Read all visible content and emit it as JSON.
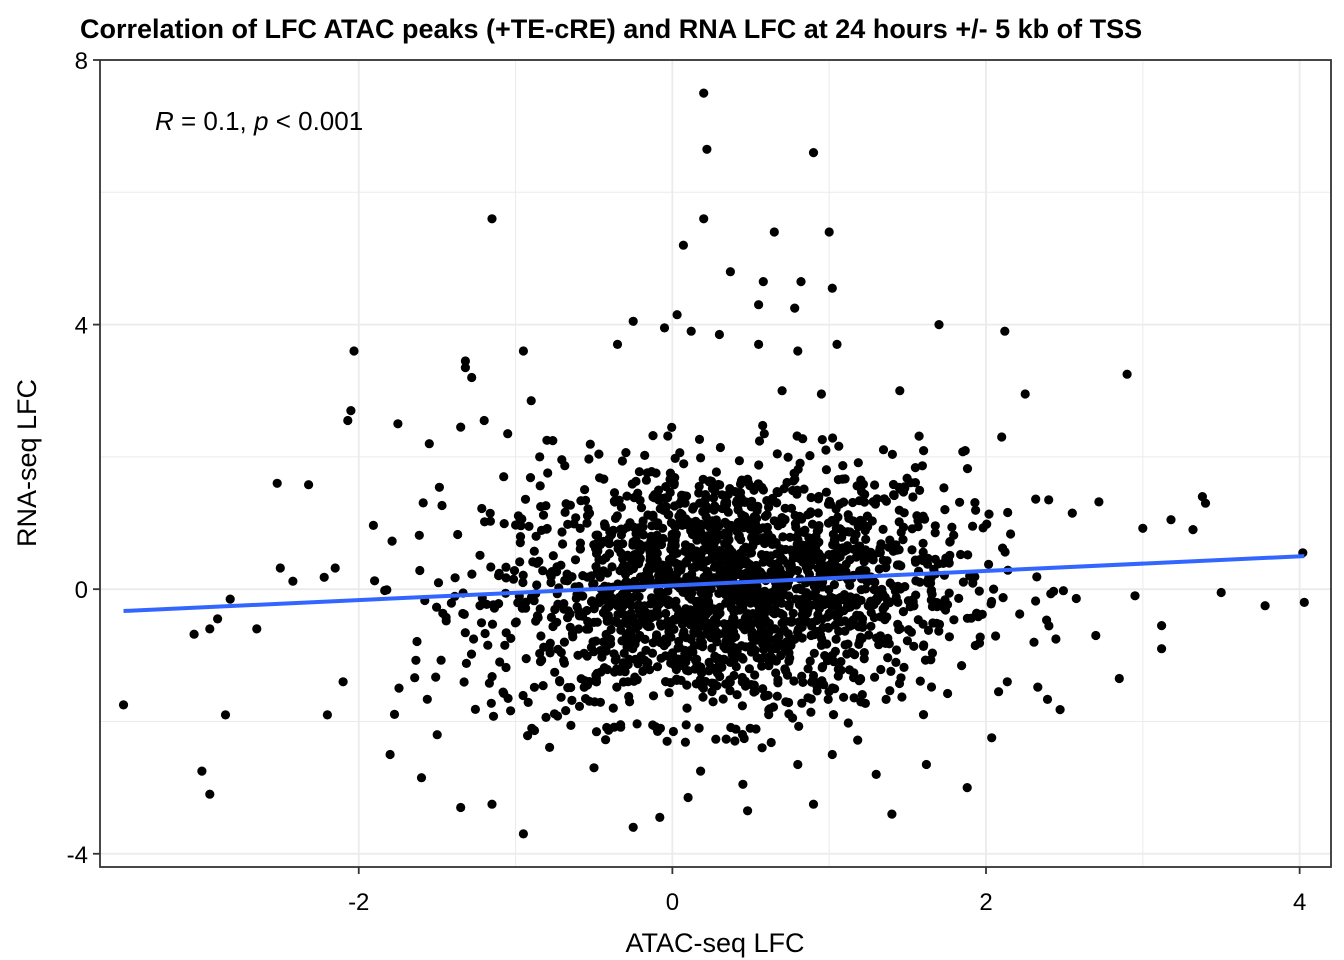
{
  "chart_data": {
    "type": "scatter",
    "title": "Correlation of LFC ATAC peaks (+TE-cRE) and RNA LFC at 24 hours +/- 5 kb of TSS",
    "xlabel": "ATAC-seq LFC",
    "ylabel": "RNA-seq LFC",
    "xlim": [
      -3.65,
      4.2
    ],
    "ylim": [
      -4.2,
      8.0
    ],
    "xticks": [
      -2,
      0,
      2,
      4
    ],
    "yticks": [
      -4,
      0,
      4,
      8
    ],
    "grid": true,
    "legend": "none",
    "annotation": {
      "R_symbol": "R",
      "R_text": " = 0.1, ",
      "p_symbol": "p",
      "p_text": " < 0.001"
    },
    "regression_line": {
      "color": "#3366FF",
      "x": [
        -3.5,
        4.03
      ],
      "y": [
        -0.33,
        0.5
      ]
    },
    "point_color": "#000000",
    "points": [
      [
        0.2,
        7.5
      ],
      [
        0.22,
        6.65
      ],
      [
        0.9,
        6.6
      ],
      [
        -1.15,
        5.6
      ],
      [
        0.2,
        5.6
      ],
      [
        1.0,
        5.4
      ],
      [
        0.65,
        5.4
      ],
      [
        0.07,
        5.2
      ],
      [
        0.37,
        4.8
      ],
      [
        1.02,
        4.55
      ],
      [
        0.58,
        4.65
      ],
      [
        0.82,
        4.65
      ],
      [
        0.55,
        4.3
      ],
      [
        0.78,
        4.25
      ],
      [
        0.03,
        4.15
      ],
      [
        -0.25,
        4.05
      ],
      [
        1.7,
        4.0
      ],
      [
        2.12,
        3.9
      ],
      [
        -0.05,
        3.95
      ],
      [
        0.12,
        3.9
      ],
      [
        0.3,
        3.85
      ],
      [
        -0.35,
        3.7
      ],
      [
        -0.95,
        3.6
      ],
      [
        -2.03,
        3.6
      ],
      [
        0.55,
        3.7
      ],
      [
        0.8,
        3.6
      ],
      [
        1.05,
        3.7
      ],
      [
        -1.32,
        3.35
      ],
      [
        -1.28,
        3.2
      ],
      [
        -1.32,
        3.45
      ],
      [
        2.9,
        3.25
      ],
      [
        0.7,
        3.0
      ],
      [
        1.45,
        3.0
      ],
      [
        -2.05,
        2.7
      ],
      [
        -2.07,
        2.55
      ],
      [
        -1.75,
        2.5
      ],
      [
        -0.9,
        2.85
      ],
      [
        0.95,
        2.95
      ],
      [
        2.25,
        2.95
      ],
      [
        -1.35,
        2.45
      ],
      [
        -1.2,
        2.55
      ],
      [
        -1.05,
        2.35
      ],
      [
        -1.55,
        2.2
      ],
      [
        -0.8,
        2.25
      ],
      [
        -2.52,
        1.6
      ],
      [
        -2.32,
        1.58
      ],
      [
        3.38,
        1.4
      ],
      [
        3.4,
        1.3
      ],
      [
        3.32,
        0.9
      ],
      [
        3.18,
        1.05
      ],
      [
        3.0,
        0.92
      ],
      [
        2.72,
        1.32
      ],
      [
        2.55,
        1.15
      ],
      [
        2.1,
        2.3
      ],
      [
        2.4,
        1.35
      ],
      [
        -2.15,
        0.32
      ],
      [
        -2.22,
        0.18
      ],
      [
        -2.5,
        0.32
      ],
      [
        -2.42,
        0.12
      ],
      [
        -2.65,
        -0.6
      ],
      [
        -2.82,
        -0.15
      ],
      [
        -3.05,
        -0.68
      ],
      [
        -2.95,
        -0.6
      ],
      [
        -2.9,
        -0.45
      ],
      [
        -2.85,
        -1.9
      ],
      [
        -3.5,
        -1.75
      ],
      [
        -3.0,
        -2.75
      ],
      [
        -2.95,
        -3.1
      ],
      [
        -2.1,
        -1.4
      ],
      [
        -2.2,
        -1.9
      ],
      [
        -1.8,
        -2.5
      ],
      [
        -1.6,
        -2.85
      ],
      [
        -1.5,
        -2.2
      ],
      [
        -1.35,
        -3.3
      ],
      [
        -1.15,
        -3.25
      ],
      [
        -0.95,
        -3.7
      ],
      [
        -0.25,
        -3.6
      ],
      [
        -0.08,
        -3.45
      ],
      [
        0.1,
        -3.15
      ],
      [
        0.48,
        -3.35
      ],
      [
        0.9,
        -3.25
      ],
      [
        1.4,
        -3.4
      ],
      [
        1.88,
        -3.0
      ],
      [
        1.62,
        -2.65
      ],
      [
        1.3,
        -2.8
      ],
      [
        1.02,
        -2.5
      ],
      [
        0.8,
        -2.65
      ],
      [
        0.45,
        -2.95
      ],
      [
        0.18,
        -2.75
      ],
      [
        -0.5,
        -2.7
      ],
      [
        3.78,
        -0.25
      ],
      [
        4.03,
        -0.2
      ],
      [
        4.02,
        0.55
      ],
      [
        3.5,
        -0.05
      ],
      [
        3.12,
        -0.55
      ],
      [
        3.12,
        -0.9
      ],
      [
        2.85,
        -1.35
      ],
      [
        2.08,
        -1.55
      ],
      [
        2.33,
        -1.48
      ],
      [
        2.7,
        -0.7
      ],
      [
        2.95,
        -0.1
      ]
    ],
    "cloud": {
      "count": 2100,
      "center": [
        0.35,
        0.0
      ],
      "sd": [
        0.75,
        0.95
      ],
      "x_range": [
        -2.0,
        2.6
      ],
      "y_range": [
        -2.4,
        2.5
      ],
      "slope": 0.11
    }
  }
}
